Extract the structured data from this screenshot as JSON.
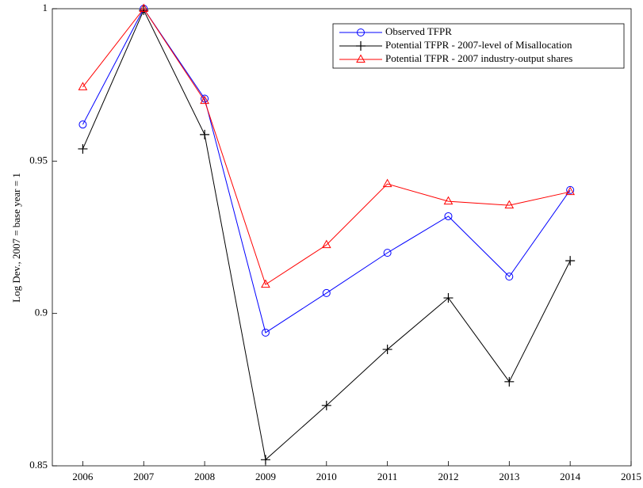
{
  "chart_data": {
    "type": "line",
    "ylabel": "Log Dev., 2007 = base year = 1",
    "x": [
      2006,
      2007,
      2008,
      2009,
      2010,
      2011,
      2012,
      2013,
      2014
    ],
    "series": [
      {
        "name": "Observed TFPR",
        "color": "#0000ff",
        "marker": "circle",
        "values": [
          0.962,
          1.0,
          0.9705,
          0.8937,
          0.9067,
          0.9199,
          0.9319,
          0.9121,
          0.9405
        ]
      },
      {
        "name": "Potential TFPR - 2007-level of Misallocation",
        "color": "#000000",
        "marker": "plus",
        "values": [
          0.954,
          0.9995,
          0.9587,
          0.852,
          0.8698,
          0.8882,
          0.9051,
          0.8776,
          0.9173
        ]
      },
      {
        "name": "Potential TFPR - 2007 industry-output shares",
        "color": "#ff0000",
        "marker": "triangle",
        "values": [
          0.9743,
          1.0,
          0.9698,
          0.9095,
          0.9225,
          0.9425,
          0.9368,
          0.9355,
          0.9399
        ]
      }
    ],
    "xlim": [
      2005.5,
      2015
    ],
    "xticks": [
      2006,
      2007,
      2008,
      2009,
      2010,
      2011,
      2012,
      2013,
      2014,
      2015
    ],
    "ylim": [
      0.85,
      1
    ],
    "yticks": [
      0.85,
      0.9,
      0.95,
      1
    ],
    "legend": "upper right"
  }
}
